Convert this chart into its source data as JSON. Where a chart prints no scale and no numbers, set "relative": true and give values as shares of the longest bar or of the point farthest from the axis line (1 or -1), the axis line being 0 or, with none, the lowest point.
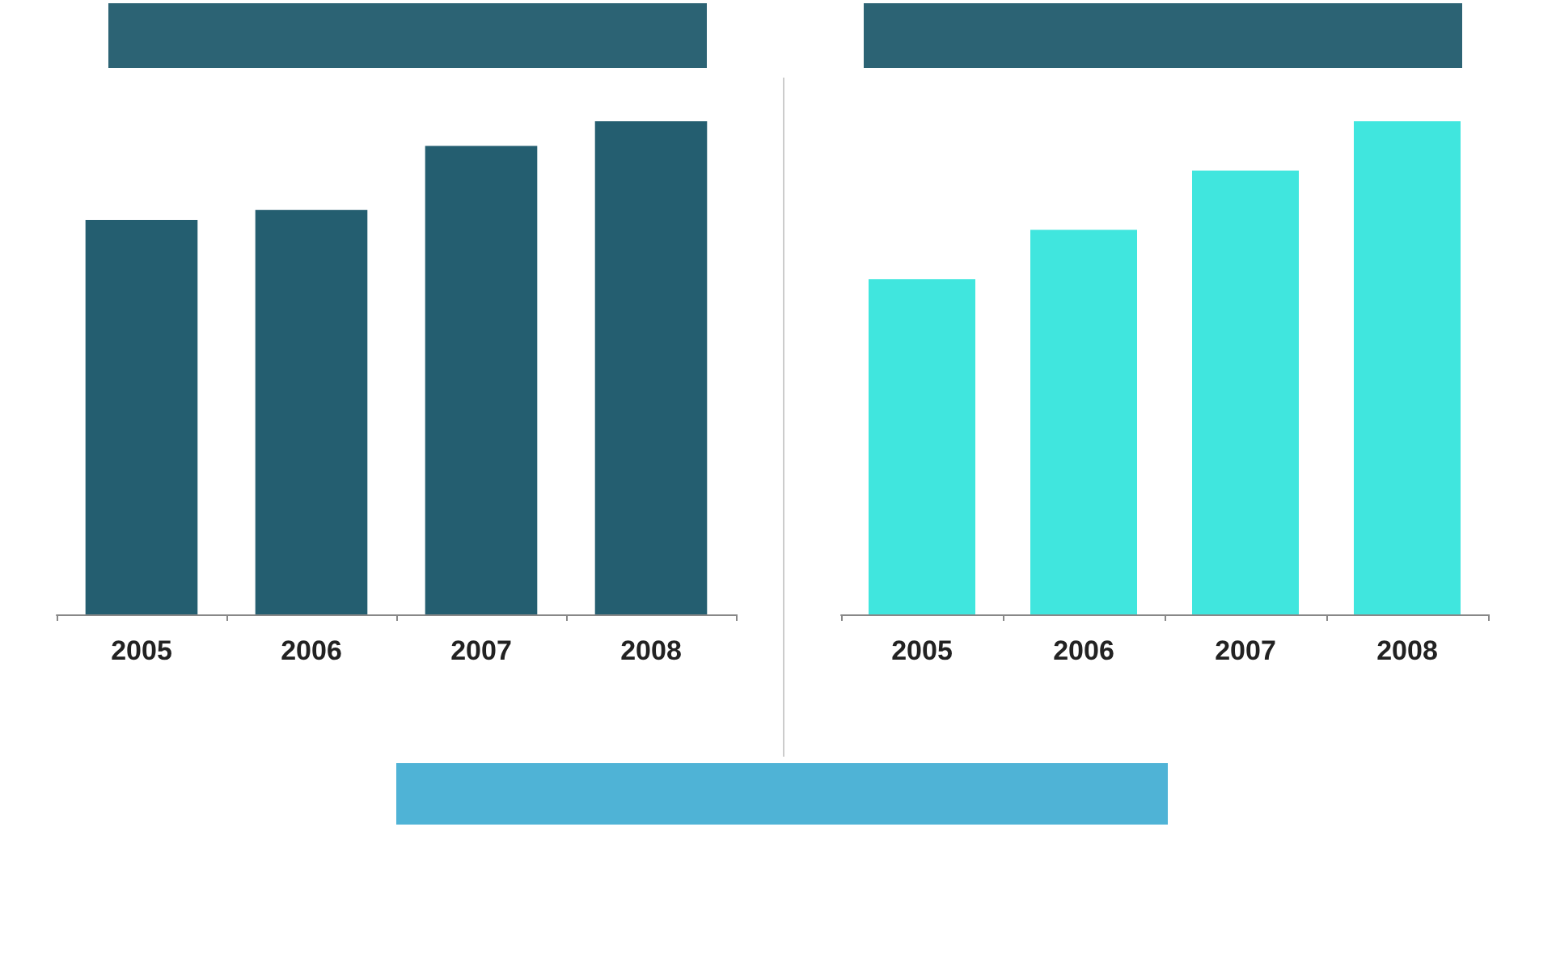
{
  "chart_data": [
    {
      "type": "bar",
      "relative": true,
      "categories": [
        "2005",
        "2006",
        "2007",
        "2008"
      ],
      "series": [
        {
          "color": "#245e70",
          "values": [
            0.8,
            0.82,
            0.95,
            1
          ]
        }
      ]
    },
    {
      "type": "bar",
      "relative": true,
      "categories": [
        "2005",
        "2006",
        "2007",
        "2008"
      ],
      "series": [
        {
          "color": "#40e6de",
          "values": [
            0.68,
            0.78,
            0.9,
            1
          ]
        }
      ]
    }
  ]
}
